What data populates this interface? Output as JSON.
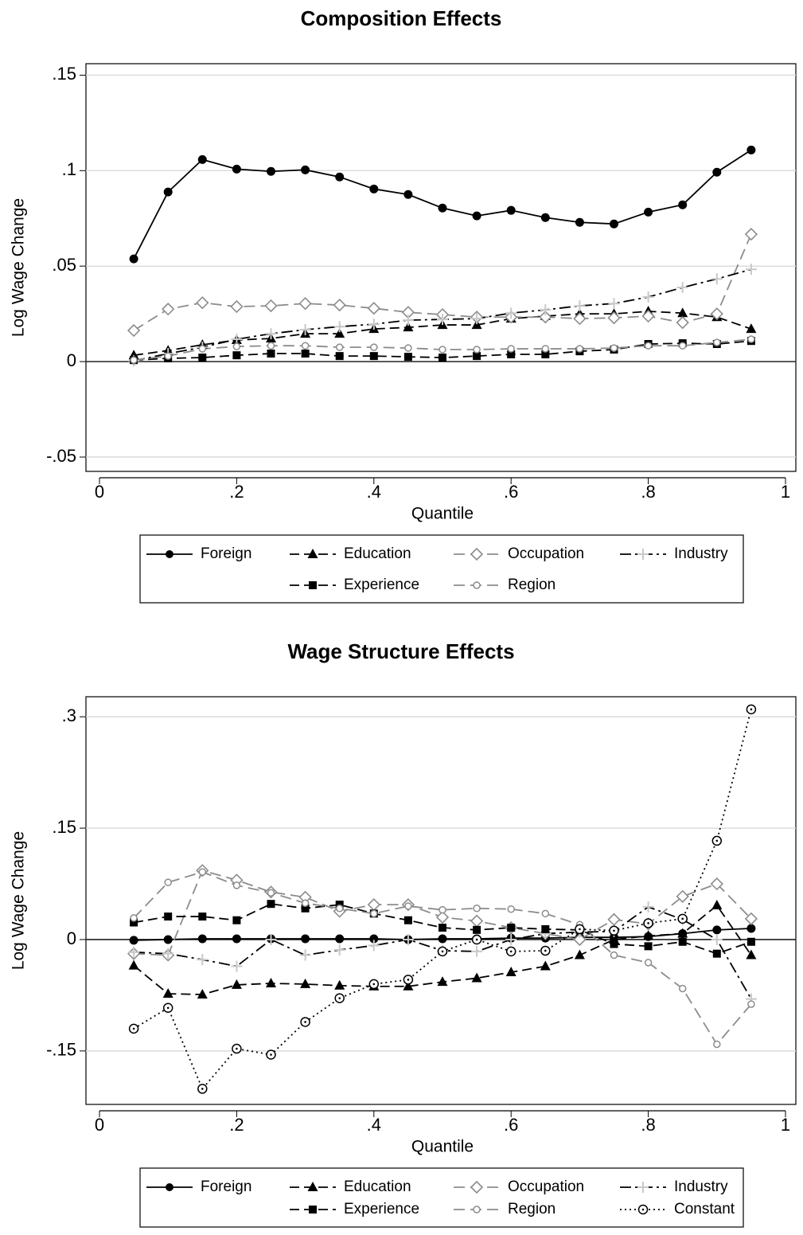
{
  "chart_data": [
    {
      "type": "line",
      "title": "Composition Effects",
      "xlabel": "Quantile",
      "ylabel": "Log Wage Change",
      "x": [
        0.05,
        0.1,
        0.15,
        0.2,
        0.25,
        0.3,
        0.35,
        0.4,
        0.45,
        0.5,
        0.55,
        0.6,
        0.65,
        0.7,
        0.75,
        0.8,
        0.85,
        0.9,
        0.95
      ],
      "xlim": [
        0,
        1
      ],
      "xticks": [
        0,
        {
          "value": 0.2,
          "label": ".2"
        },
        {
          "value": 0.4,
          "label": ".4"
        },
        {
          "value": 0.6,
          "label": ".6"
        },
        {
          "value": 0.8,
          "label": ".8"
        },
        1
      ],
      "ylim": [
        -0.0575,
        0.156
      ],
      "yticks": [
        {
          "value": -0.05,
          "label": "-.05"
        },
        0,
        {
          "value": 0.05,
          "label": ".05"
        },
        {
          "value": 0.1,
          "label": ".1"
        },
        {
          "value": 0.15,
          "label": ".15"
        }
      ],
      "grid": true,
      "refline": 0,
      "series": [
        {
          "name": "Foreign",
          "color": "#000000",
          "dash": "solid",
          "marker": "circle",
          "values": [
            0.0538,
            0.0888,
            0.1058,
            0.1008,
            0.0996,
            0.1004,
            0.0967,
            0.0904,
            0.0875,
            0.0804,
            0.0763,
            0.0792,
            0.0754,
            0.0729,
            0.0721,
            0.0783,
            0.0821,
            0.0992,
            0.1108
          ]
        },
        {
          "name": "Education",
          "color": "#000000",
          "dash": "dashed",
          "marker": "triangle",
          "values": [
            0.0033,
            0.0058,
            0.0088,
            0.0113,
            0.0121,
            0.0146,
            0.0146,
            0.0171,
            0.0179,
            0.0192,
            0.0192,
            0.0225,
            0.0238,
            0.025,
            0.025,
            0.0263,
            0.0254,
            0.0233,
            0.0171
          ]
        },
        {
          "name": "Occupation",
          "color": "#8c8c8c",
          "dash": "longdash",
          "marker": "diamond",
          "values": [
            0.0163,
            0.0275,
            0.0308,
            0.0288,
            0.0292,
            0.0304,
            0.0296,
            0.0279,
            0.0258,
            0.0246,
            0.0233,
            0.0233,
            0.0233,
            0.0225,
            0.0229,
            0.0238,
            0.0204,
            0.025,
            0.0667
          ]
        },
        {
          "name": "Industry",
          "color": "#000000",
          "dash": "dashdot",
          "marker": "plus",
          "values": [
            0.0004,
            0.0042,
            0.0075,
            0.0117,
            0.0146,
            0.0167,
            0.0183,
            0.0196,
            0.0217,
            0.0221,
            0.0225,
            0.0254,
            0.0271,
            0.0292,
            0.0304,
            0.0338,
            0.0388,
            0.0433,
            0.0483
          ]
        },
        {
          "name": "Experience",
          "color": "#000000",
          "dash": "dashed",
          "marker": "square",
          "values": [
            0.0008,
            0.0017,
            0.0021,
            0.0033,
            0.0042,
            0.0042,
            0.0029,
            0.0029,
            0.0025,
            0.0021,
            0.0029,
            0.0038,
            0.0038,
            0.0054,
            0.0063,
            0.0092,
            0.0096,
            0.0092,
            0.0108
          ]
        },
        {
          "name": "Region",
          "color": "#8c8c8c",
          "dash": "longdash",
          "marker": "ring",
          "values": [
            0.0008,
            0.0029,
            0.0067,
            0.0079,
            0.0083,
            0.0083,
            0.0075,
            0.0075,
            0.0071,
            0.0063,
            0.0063,
            0.0067,
            0.0067,
            0.0067,
            0.0071,
            0.0083,
            0.0083,
            0.01,
            0.0117
          ]
        }
      ]
    },
    {
      "type": "line",
      "title": "Wage Structure Effects",
      "xlabel": "Quantile",
      "ylabel": "Log Wage Change",
      "x": [
        0.05,
        0.1,
        0.15,
        0.2,
        0.25,
        0.3,
        0.35,
        0.4,
        0.45,
        0.5,
        0.55,
        0.6,
        0.65,
        0.7,
        0.75,
        0.8,
        0.85,
        0.9,
        0.95
      ],
      "xlim": [
        0,
        1
      ],
      "xticks": [
        0,
        {
          "value": 0.2,
          "label": ".2"
        },
        {
          "value": 0.4,
          "label": ".4"
        },
        {
          "value": 0.6,
          "label": ".6"
        },
        {
          "value": 0.8,
          "label": ".8"
        },
        1
      ],
      "ylim": [
        -0.222,
        0.327
      ],
      "yticks": [
        {
          "value": -0.15,
          "label": "-.15"
        },
        0,
        {
          "value": 0.15,
          "label": ".15"
        },
        {
          "value": 0.3,
          "label": ".3"
        }
      ],
      "grid": true,
      "refline": 0,
      "series": [
        {
          "name": "Foreign",
          "color": "#000000",
          "dash": "solid",
          "marker": "circle",
          "values": [
            -0.001,
            0,
            0.001,
            0.001,
            0.001,
            0.001,
            0.001,
            0.001,
            0,
            0.001,
            0.001,
            0.002,
            0.002,
            0.003,
            0.003,
            0.004,
            0.008,
            0.013,
            0.015
          ]
        },
        {
          "name": "Education",
          "color": "#000000",
          "dash": "dashed",
          "marker": "triangle",
          "values": [
            -0.035,
            -0.073,
            -0.074,
            -0.061,
            -0.059,
            -0.06,
            -0.062,
            -0.063,
            -0.063,
            -0.057,
            -0.052,
            -0.044,
            -0.036,
            -0.021,
            0,
            0.005,
            0.008,
            0.046,
            -0.021
          ]
        },
        {
          "name": "Occupation",
          "color": "#8c8c8c",
          "dash": "longdash",
          "marker": "diamond",
          "values": [
            -0.019,
            -0.021,
            0.093,
            0.08,
            0.064,
            0.057,
            0.038,
            0.047,
            0.047,
            0.03,
            0.025,
            0.016,
            0.008,
            0,
            0.027,
            0.021,
            0.058,
            0.075,
            0.028
          ]
        },
        {
          "name": "Industry",
          "color": "#000000",
          "dash": "dashdot",
          "marker": "plus",
          "values": [
            -0.017,
            -0.019,
            -0.027,
            -0.036,
            0,
            -0.021,
            -0.014,
            -0.008,
            0,
            -0.015,
            -0.016,
            0,
            0.008,
            0.01,
            0.011,
            0.044,
            0.027,
            0,
            -0.08
          ]
        },
        {
          "name": "Experience",
          "color": "#000000",
          "dash": "dashed",
          "marker": "square",
          "values": [
            0.023,
            0.031,
            0.031,
            0.026,
            0.048,
            0.042,
            0.047,
            0.035,
            0.026,
            0.016,
            0.013,
            0.016,
            0.014,
            0.013,
            -0.006,
            -0.009,
            -0.003,
            -0.019,
            -0.003
          ]
        },
        {
          "name": "Region",
          "color": "#8c8c8c",
          "dash": "longdash",
          "marker": "ring",
          "values": [
            0.029,
            0.077,
            0.091,
            0.073,
            0.063,
            0.049,
            0.042,
            0.035,
            0.045,
            0.04,
            0.042,
            0.041,
            0.035,
            0.02,
            -0.021,
            -0.031,
            -0.066,
            -0.141,
            -0.087
          ]
        },
        {
          "name": "Constant",
          "color": "#000000",
          "dash": "dotted",
          "marker": "target",
          "values": [
            -0.12,
            -0.092,
            -0.201,
            -0.147,
            -0.155,
            -0.111,
            -0.079,
            -0.06,
            -0.054,
            -0.016,
            0,
            -0.016,
            -0.015,
            0.014,
            0.012,
            0.022,
            0.028,
            0.133,
            0.31
          ]
        }
      ]
    }
  ]
}
